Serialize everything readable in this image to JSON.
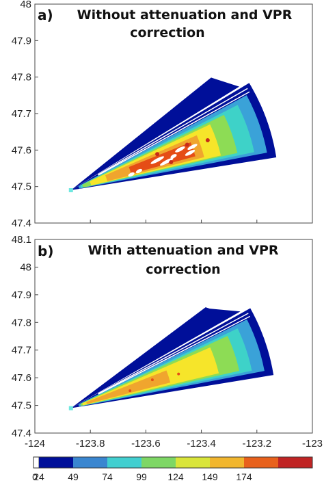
{
  "chart_data": [
    {
      "type": "heatmap",
      "panel_label": "a)",
      "title_line1": "Without attenuation and VPR",
      "title_line2": "correction",
      "xlim": [
        -124,
        -123
      ],
      "ylim": [
        47.4,
        48
      ],
      "y_ticks": [
        "47.4",
        "47.5",
        "47.6",
        "47.7",
        "47.8",
        "47.9",
        "48"
      ],
      "x_ticks_shown": false,
      "radar_site": [
        -123.87,
        47.49
      ],
      "sector": {
        "vertex": [
          -123.87,
          47.49
        ],
        "outer_arc_from": [
          -123.13,
          47.58
        ],
        "outer_arc_to": [
          -123.28,
          47.76
        ],
        "long_beam_tip": [
          -123.35,
          47.795
        ]
      },
      "colors_present": [
        "#000f99",
        "#3aa2d8",
        "#3ed2c8",
        "#8ddc55",
        "#f6e52a",
        "#f0a52e",
        "#e54d16",
        "#c62a1a",
        "#ffffff"
      ]
    },
    {
      "type": "heatmap",
      "panel_label": "b)",
      "title_line1": "With attenuation and VPR",
      "title_line2": "correction",
      "xlim": [
        -124,
        -123
      ],
      "ylim": [
        47.4,
        48.1
      ],
      "x_ticks": [
        "-124",
        "-123.8",
        "-123.6",
        "-123.4",
        "-123.2",
        "-123"
      ],
      "y_ticks": [
        "47.4",
        "47.5",
        "47.6",
        "47.7",
        "47.8",
        "47.9",
        "48",
        "48.1"
      ],
      "radar_site": [
        -123.87,
        47.49
      ],
      "sector": {
        "vertex": [
          -123.87,
          47.49
        ],
        "outer_arc_from": [
          -123.14,
          47.61
        ],
        "outer_arc_to": [
          -123.28,
          47.82
        ],
        "long_beam_tip": [
          -123.37,
          47.85
        ]
      },
      "colors_present": [
        "#000f99",
        "#3aa2d8",
        "#3ed2c8",
        "#8ddc55",
        "#f6e52a",
        "#f0a52e",
        "#e54d16"
      ]
    }
  ],
  "colorbar": {
    "tick_labels": [
      "0",
      "24",
      "49",
      "74",
      "99",
      "124",
      "149",
      "174"
    ],
    "colors": [
      "#ffffff",
      "#000f99",
      "#3a86d0",
      "#42cfd0",
      "#7ed765",
      "#d9e53a",
      "#f1b62e",
      "#e8611c",
      "#c02424"
    ]
  }
}
